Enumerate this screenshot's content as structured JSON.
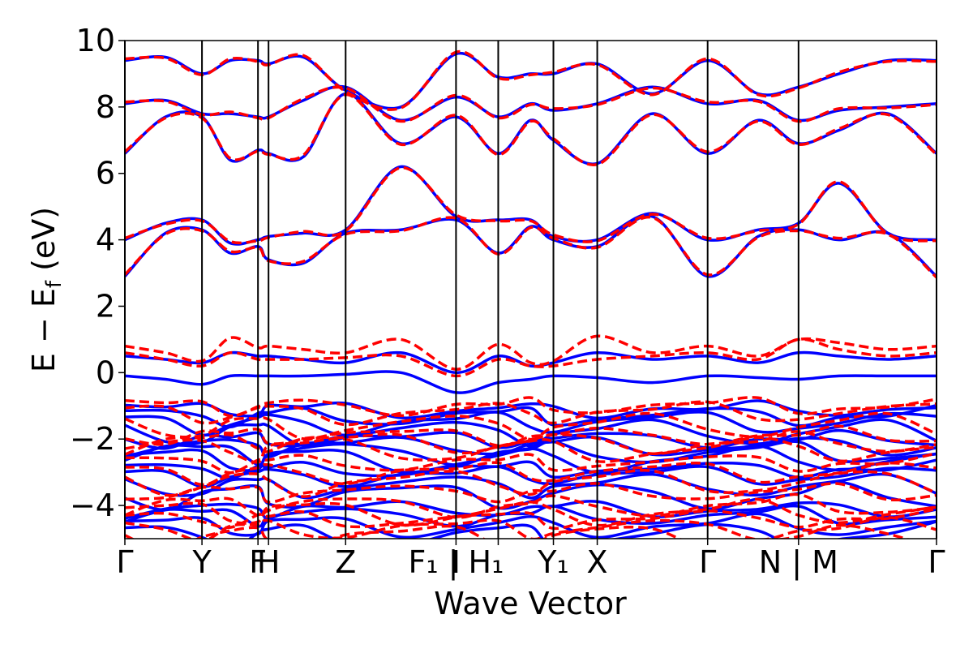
{
  "chart_data": {
    "type": "line",
    "title": "",
    "xlabel": "Wave Vector",
    "ylabel": "E − E_f (eV)",
    "ylabel_parts": {
      "main": "E − E",
      "sub": "f",
      "unit": " (eV)"
    },
    "ylim": [
      -5,
      10
    ],
    "yticks": [
      {
        "value": -4,
        "label": "−4"
      },
      {
        "value": -2,
        "label": "−2"
      },
      {
        "value": 0,
        "label": "0"
      },
      {
        "value": 2,
        "label": "2"
      },
      {
        "value": 4,
        "label": "4"
      },
      {
        "value": 6,
        "label": "6"
      },
      {
        "value": 8,
        "label": "8"
      },
      {
        "value": 10,
        "label": "10"
      }
    ],
    "xlim": [
      0,
      1
    ],
    "kpoints": [
      {
        "x": 0.0,
        "label": "Γ"
      },
      {
        "x": 0.095,
        "label": "Y"
      },
      {
        "x": 0.164,
        "label": "F"
      },
      {
        "x": 0.177,
        "label": "H"
      },
      {
        "x": 0.272,
        "label": "Z"
      },
      {
        "x": 0.408,
        "label": "I"
      },
      {
        "x": 0.408,
        "label": "F₁ | H₁"
      },
      {
        "x": 0.46,
        "label": ""
      },
      {
        "x": 0.528,
        "label": "Y₁"
      },
      {
        "x": 0.582,
        "label": "X"
      },
      {
        "x": 0.718,
        "label": "Γ"
      },
      {
        "x": 0.83,
        "label": "N | M"
      },
      {
        "x": 1.0,
        "label": "Γ"
      }
    ],
    "series": [
      {
        "style": "solid",
        "color": "#0000ff"
      },
      {
        "style": "dashed",
        "color": "#ff0000"
      }
    ],
    "band_samples": {
      "x": [
        0.0,
        0.05,
        0.095,
        0.13,
        0.164,
        0.177,
        0.22,
        0.272,
        0.34,
        0.408,
        0.46,
        0.5,
        0.528,
        0.582,
        0.65,
        0.718,
        0.78,
        0.83,
        0.88,
        0.94,
        1.0
      ],
      "conduction_solid": [
        [
          2.9,
          4.2,
          4.3,
          3.6,
          3.8,
          3.4,
          3.3,
          4.2,
          4.3,
          4.6,
          3.6,
          4.4,
          4.0,
          3.8,
          4.7,
          2.9,
          4.1,
          4.3,
          4.0,
          4.2,
          2.9
        ],
        [
          4.0,
          4.5,
          4.6,
          3.9,
          4.0,
          4.1,
          4.2,
          4.3,
          6.2,
          4.7,
          4.6,
          4.6,
          4.1,
          4.0,
          4.8,
          4.0,
          4.3,
          4.5,
          5.7,
          4.2,
          4.0
        ],
        [
          6.6,
          7.7,
          7.7,
          6.4,
          6.7,
          6.6,
          6.5,
          8.4,
          6.9,
          7.7,
          6.6,
          7.6,
          7.0,
          6.3,
          7.8,
          6.6,
          7.6,
          6.9,
          7.3,
          7.8,
          6.6
        ],
        [
          8.1,
          8.2,
          7.8,
          7.8,
          7.7,
          7.7,
          8.2,
          8.6,
          7.6,
          8.3,
          7.7,
          8.1,
          7.9,
          8.1,
          8.6,
          8.1,
          8.2,
          7.6,
          7.9,
          8.0,
          8.1
        ],
        [
          9.4,
          9.5,
          9.0,
          9.4,
          9.4,
          9.3,
          9.5,
          8.5,
          8.0,
          9.6,
          8.9,
          9.0,
          9.0,
          9.3,
          8.4,
          9.4,
          8.4,
          8.6,
          9.0,
          9.4,
          9.4
        ]
      ],
      "gap_solid": [
        [
          -0.1,
          -0.2,
          -0.35,
          -0.1,
          -0.1,
          -0.1,
          -0.1,
          -0.05,
          0.0,
          -0.6,
          -0.3,
          -0.2,
          -0.1,
          -0.15,
          -0.3,
          -0.1,
          -0.15,
          -0.2,
          -0.1,
          -0.1,
          -0.1
        ],
        [
          0.5,
          0.4,
          0.3,
          0.6,
          0.5,
          0.5,
          0.4,
          0.3,
          0.6,
          0.0,
          0.5,
          0.2,
          0.3,
          0.6,
          0.4,
          0.5,
          0.3,
          0.6,
          0.5,
          0.4,
          0.5
        ]
      ],
      "gap_dashed": [
        [
          0.6,
          0.4,
          0.2,
          0.6,
          0.4,
          0.4,
          0.4,
          0.45,
          0.5,
          -0.1,
          0.4,
          0.2,
          0.2,
          0.4,
          0.5,
          0.6,
          0.4,
          1.0,
          0.7,
          0.5,
          0.6
        ],
        [
          0.8,
          0.6,
          0.35,
          1.05,
          0.75,
          0.8,
          0.7,
          0.6,
          1.0,
          0.1,
          0.85,
          0.3,
          0.35,
          1.1,
          0.6,
          0.8,
          0.5,
          1.0,
          0.9,
          0.7,
          0.8
        ]
      ],
      "valence_solid_offsets": [
        -1.1,
        -1.3,
        -1.5,
        -1.8,
        -2.0,
        -2.2,
        -2.4,
        -2.6,
        -2.9,
        -3.1,
        -3.4,
        -3.7,
        -4.1,
        -4.3,
        -4.6,
        -4.9
      ],
      "valence_dashed_offsets": [
        -1.0,
        -1.2,
        -1.6,
        -1.9,
        -2.1,
        -2.3,
        -2.7,
        -3.0,
        -3.3,
        -3.6,
        -4.0,
        -4.2,
        -4.4,
        -4.7,
        -4.95
      ]
    }
  }
}
